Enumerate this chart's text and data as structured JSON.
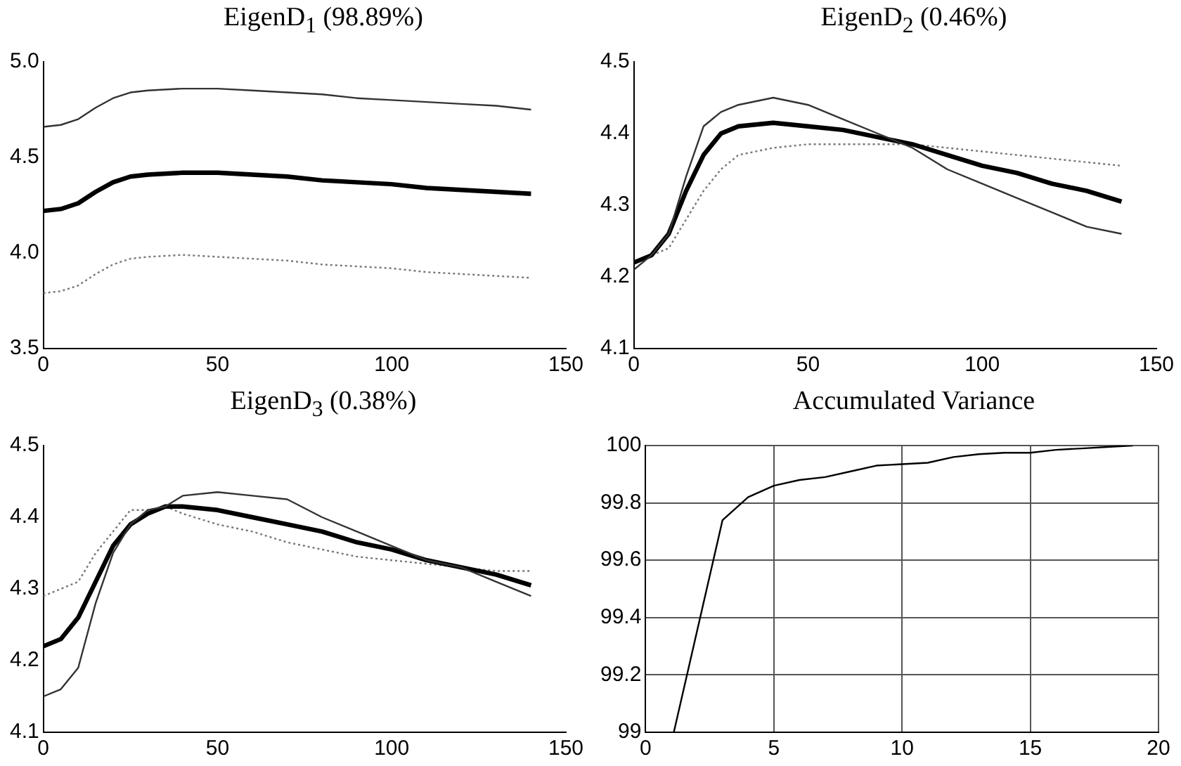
{
  "chart_data": [
    {
      "type": "line",
      "title": "EigenD$_{1}$ (98.89%)",
      "x": [
        0,
        5,
        10,
        15,
        20,
        25,
        30,
        40,
        50,
        60,
        70,
        80,
        90,
        100,
        110,
        120,
        130,
        140
      ],
      "xlim": [
        0,
        150
      ],
      "xticks": [
        0,
        50,
        100,
        150
      ],
      "ylim": [
        3.5,
        5.0
      ],
      "yticks": [
        3.5,
        {
          "value": 4.0,
          "label": "4.0"
        },
        4.5,
        {
          "value": 5.0,
          "label": "5.0"
        }
      ],
      "marker": "none",
      "series": [
        {
          "color": "#333333",
          "values": [
            4.66,
            4.67,
            4.7,
            4.76,
            4.81,
            4.84,
            4.85,
            4.86,
            4.86,
            4.85,
            4.84,
            4.83,
            4.81,
            4.8,
            4.79,
            4.78,
            4.77,
            4.75
          ]
        },
        {
          "color": "#000000",
          "values": [
            4.22,
            4.23,
            4.26,
            4.32,
            4.37,
            4.4,
            4.41,
            4.42,
            4.42,
            4.41,
            4.4,
            4.38,
            4.37,
            4.36,
            4.34,
            4.33,
            4.32,
            4.31
          ]
        },
        {
          "color": "#777777",
          "line_style": "dotted",
          "values": [
            3.79,
            3.8,
            3.83,
            3.89,
            3.94,
            3.97,
            3.98,
            3.99,
            3.98,
            3.97,
            3.96,
            3.94,
            3.93,
            3.92,
            3.9,
            3.89,
            3.88,
            3.87
          ]
        }
      ]
    },
    {
      "type": "line",
      "title": "EigenD$_{2}$ (0.46%)",
      "x": [
        0,
        5,
        10,
        15,
        20,
        25,
        30,
        40,
        50,
        60,
        70,
        80,
        90,
        100,
        110,
        120,
        130,
        140
      ],
      "xlim": [
        0,
        150
      ],
      "xticks": [
        0,
        50,
        100,
        150
      ],
      "ylim": [
        4.1,
        4.5
      ],
      "yticks": [
        4.1,
        4.2,
        4.3,
        4.4,
        4.5
      ],
      "marker": "none",
      "series": [
        {
          "color": "#333333",
          "values": [
            4.21,
            4.23,
            4.26,
            4.34,
            4.41,
            4.43,
            4.44,
            4.45,
            4.44,
            4.42,
            4.4,
            4.38,
            4.35,
            4.33,
            4.31,
            4.29,
            4.27,
            4.26
          ]
        },
        {
          "color": "#000000",
          "values": [
            4.22,
            4.23,
            4.26,
            4.32,
            4.37,
            4.4,
            4.41,
            4.415,
            4.41,
            4.405,
            4.395,
            4.385,
            4.37,
            4.355,
            4.345,
            4.33,
            4.32,
            4.305
          ]
        },
        {
          "color": "#777777",
          "line_style": "dotted",
          "values": [
            4.22,
            4.23,
            4.24,
            4.28,
            4.32,
            4.35,
            4.37,
            4.38,
            4.385,
            4.385,
            4.385,
            4.385,
            4.38,
            4.375,
            4.37,
            4.365,
            4.36,
            4.355
          ]
        }
      ]
    },
    {
      "type": "line",
      "title": "EigenD$_{3}$ (0.38%)",
      "x": [
        0,
        5,
        10,
        15,
        20,
        25,
        30,
        35,
        40,
        50,
        60,
        70,
        80,
        90,
        100,
        110,
        120,
        130,
        140
      ],
      "xlim": [
        0,
        150
      ],
      "xticks": [
        0,
        50,
        100,
        150
      ],
      "ylim": [
        4.1,
        4.5
      ],
      "yticks": [
        4.1,
        4.2,
        4.3,
        4.4,
        4.5
      ],
      "marker": "none",
      "series": [
        {
          "color": "#333333",
          "values": [
            4.15,
            4.16,
            4.19,
            4.28,
            4.35,
            4.39,
            4.41,
            4.415,
            4.43,
            4.435,
            4.43,
            4.425,
            4.4,
            4.38,
            4.36,
            4.34,
            4.33,
            4.31,
            4.29
          ]
        },
        {
          "color": "#000000",
          "values": [
            4.22,
            4.23,
            4.26,
            4.31,
            4.36,
            4.39,
            4.405,
            4.415,
            4.415,
            4.41,
            4.4,
            4.39,
            4.38,
            4.365,
            4.355,
            4.34,
            4.33,
            4.32,
            4.305
          ]
        },
        {
          "color": "#777777",
          "line_style": "dotted",
          "values": [
            4.29,
            4.3,
            4.31,
            4.35,
            4.38,
            4.41,
            4.41,
            4.415,
            4.405,
            4.39,
            4.38,
            4.365,
            4.355,
            4.345,
            4.34,
            4.335,
            4.33,
            4.325,
            4.325
          ]
        }
      ]
    },
    {
      "type": "line",
      "title": "Accumulated Variance",
      "x": [
        1.1,
        3,
        4,
        5,
        6,
        7,
        8,
        9,
        10,
        11,
        12,
        13,
        14,
        15,
        16,
        17,
        18,
        19
      ],
      "xlim": [
        0,
        20
      ],
      "xticks": [
        0,
        5,
        10,
        15,
        20
      ],
      "ylim": [
        99,
        100
      ],
      "yticks": [
        99,
        99.2,
        99.4,
        99.6,
        99.8,
        100
      ],
      "grid": true,
      "marker": "none",
      "series": [
        {
          "color": "#000000",
          "values": [
            99,
            99.74,
            99.82,
            99.86,
            99.88,
            99.89,
            99.91,
            99.93,
            99.935,
            99.94,
            99.96,
            99.97,
            99.975,
            99.975,
            99.985,
            99.99,
            99.995,
            100
          ]
        }
      ]
    }
  ]
}
